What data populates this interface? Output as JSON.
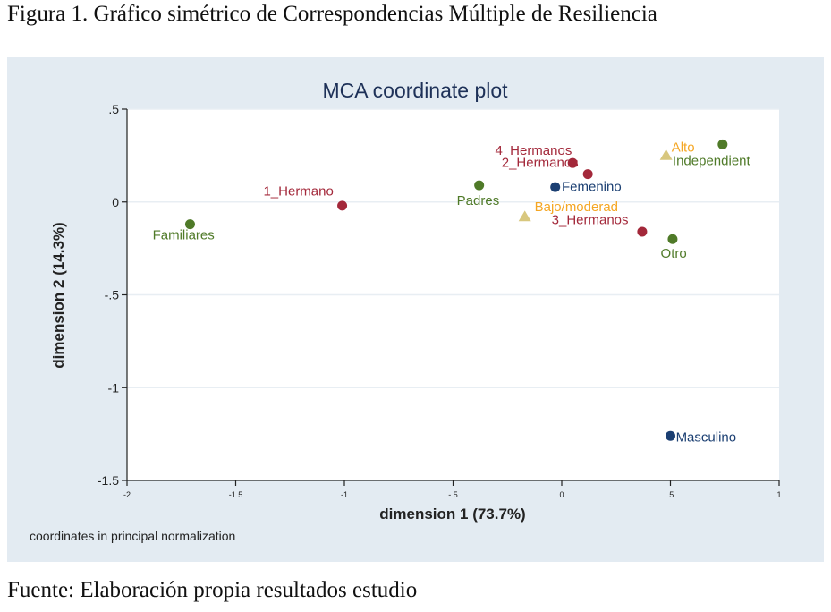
{
  "figure": {
    "caption": "Figura 1. Gráfico simétrico de Correspondencias Múltiple de Resiliencia",
    "source": "Fuente: Elaboración propia resultados estudio"
  },
  "chart_data": {
    "type": "scatter",
    "title": "MCA coordinate plot",
    "xlabel": "dimension 1 (73.7%)",
    "ylabel": "dimension 2 (14.3%)",
    "note": "coordinates in principal normalization",
    "xlim": [
      -2,
      1
    ],
    "ylim": [
      -1.5,
      0.5
    ],
    "xticks": [
      -2,
      -1.5,
      -1,
      -0.5,
      0,
      0.5,
      1
    ],
    "xtick_labels": [
      "-2",
      "-1.5",
      "-1",
      "-.5",
      "0",
      ".5",
      "1"
    ],
    "yticks": [
      0.5,
      0,
      -0.5,
      -1,
      -1.5
    ],
    "ytick_labels": [
      ".5",
      "0",
      "-.5",
      "-1",
      "-1.5"
    ],
    "grid": true,
    "colors": {
      "red": "#a3283a",
      "blue": "#1b3f72",
      "green": "#4f7a28",
      "orange": "#f5a623",
      "triangle": "#d8c77e"
    },
    "points": [
      {
        "label": "Familiares",
        "x": -1.71,
        "y": -0.12,
        "color": "green",
        "marker": "circle",
        "lx": -1.74,
        "ly": -0.2,
        "anchor": "middle"
      },
      {
        "label": "1_Hermano",
        "x": -1.01,
        "y": -0.02,
        "color": "red",
        "marker": "circle",
        "lx": -1.05,
        "ly": 0.035,
        "anchor": "end"
      },
      {
        "label": "Padres",
        "x": -0.38,
        "y": 0.09,
        "color": "green",
        "marker": "circle",
        "lx": -0.385,
        "ly": -0.015,
        "anchor": "middle"
      },
      {
        "label": "4_Hermanos",
        "x": 0.05,
        "y": 0.21,
        "color": "red",
        "marker": "circle",
        "lx": -0.13,
        "ly": 0.255,
        "anchor": "middle"
      },
      {
        "label": "2_Hermanos",
        "x": 0.12,
        "y": 0.15,
        "color": "red",
        "marker": "circle",
        "lx": -0.1,
        "ly": 0.19,
        "anchor": "middle"
      },
      {
        "label": "Femenino",
        "x": -0.03,
        "y": 0.08,
        "color": "blue",
        "marker": "circle",
        "lx": 0.0,
        "ly": 0.06,
        "anchor": "start"
      },
      {
        "label": "Bajo/moderad",
        "x": -0.17,
        "y": -0.08,
        "color": "orange",
        "marker": "triangle",
        "lx": -0.125,
        "ly": -0.05,
        "anchor": "start"
      },
      {
        "label": "3_Hermanos",
        "x": 0.37,
        "y": -0.16,
        "color": "red",
        "marker": "circle",
        "lx": 0.13,
        "ly": -0.12,
        "anchor": "middle"
      },
      {
        "label": "Alto",
        "x": 0.48,
        "y": 0.25,
        "color": "orange",
        "marker": "triangle",
        "lx": 0.505,
        "ly": 0.27,
        "anchor": "start"
      },
      {
        "label": "Independient",
        "x": 0.74,
        "y": 0.31,
        "color": "green",
        "marker": "circle",
        "lx": 0.51,
        "ly": 0.2,
        "anchor": "start"
      },
      {
        "label": "Otro",
        "x": 0.51,
        "y": -0.2,
        "color": "green",
        "marker": "circle",
        "lx": 0.515,
        "ly": -0.3,
        "anchor": "middle"
      },
      {
        "label": "Masculino",
        "x": 0.5,
        "y": -1.26,
        "color": "blue",
        "marker": "circle",
        "lx": 0.525,
        "ly": -1.29,
        "anchor": "start"
      }
    ]
  }
}
